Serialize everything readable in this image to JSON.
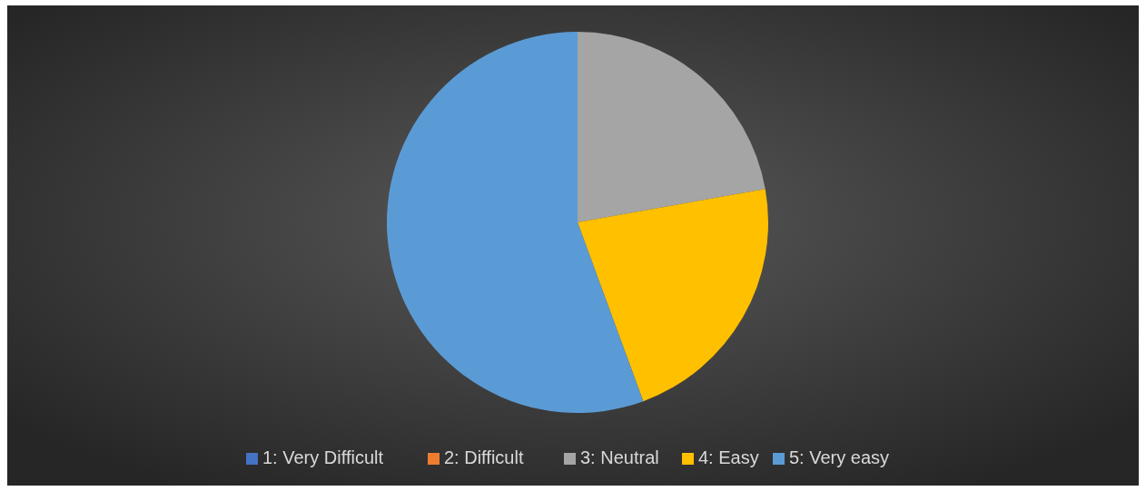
{
  "chart_data": {
    "type": "pie",
    "categories": [
      "1: Very Difficult",
      "2: Difficult",
      "3: Neutral",
      "4: Easy",
      "5: Very easy"
    ],
    "values": [
      0,
      0,
      22.2,
      22.2,
      55.6
    ],
    "colors": [
      "#4472c4",
      "#ed7d31",
      "#a5a5a5",
      "#ffc000",
      "#5b9bd5"
    ],
    "legend": "bottom"
  }
}
